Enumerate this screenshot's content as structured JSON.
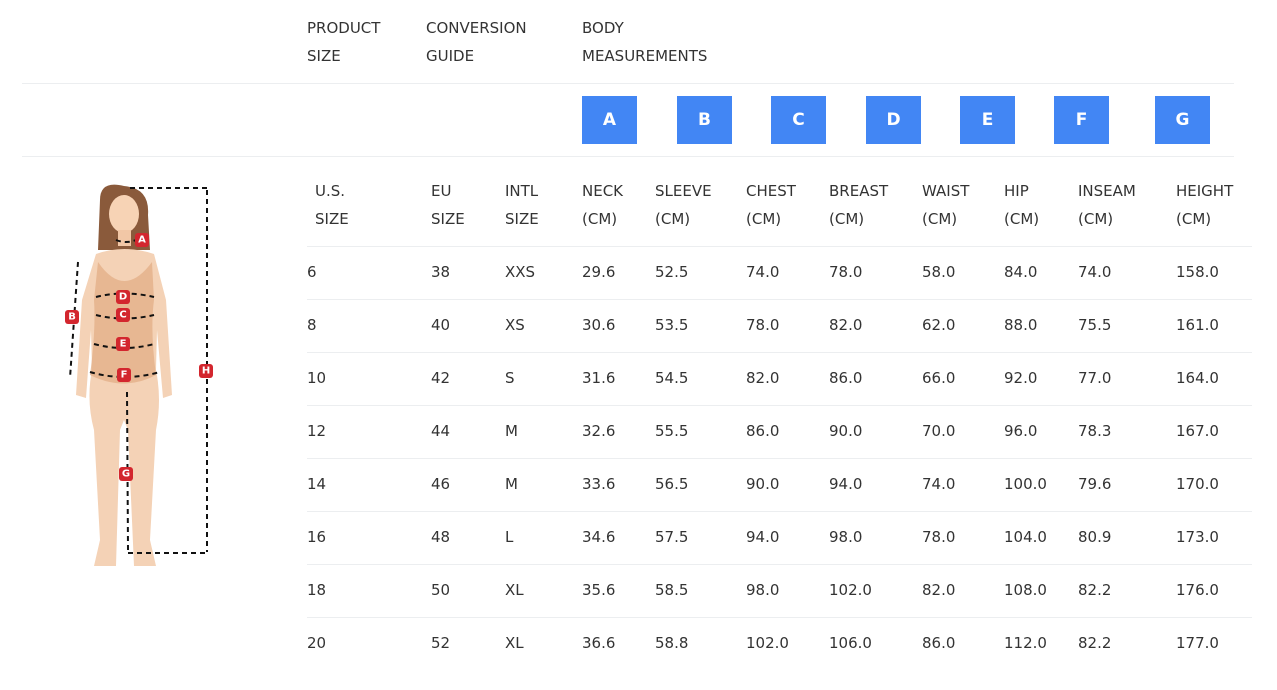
{
  "header": {
    "columns": [
      "PRODUCT SIZE",
      "CONVERSION GUIDE",
      "BODY MEASUREMENTS"
    ]
  },
  "badges": [
    "A",
    "B",
    "C",
    "D",
    "E",
    "F",
    "G"
  ],
  "table": {
    "columns": [
      "U.S. SIZE",
      "EU SIZE",
      "INTL SIZE",
      "NECK (CM)",
      "SLEEVE (CM)",
      "CHEST (CM)",
      "BREAST (CM)",
      "WAIST (CM)",
      "HIP (CM)",
      "INSEAM (CM)",
      "HEIGHT (CM)"
    ],
    "rows": [
      [
        "6",
        "38",
        "XXS",
        "29.6",
        "52.5",
        "74.0",
        "78.0",
        "58.0",
        "84.0",
        "74.0",
        "158.0"
      ],
      [
        "8",
        "40",
        "XS",
        "30.6",
        "53.5",
        "78.0",
        "82.0",
        "62.0",
        "88.0",
        "75.5",
        "161.0"
      ],
      [
        "10",
        "42",
        "S",
        "31.6",
        "54.5",
        "82.0",
        "86.0",
        "66.0",
        "92.0",
        "77.0",
        "164.0"
      ],
      [
        "12",
        "44",
        "M",
        "32.6",
        "55.5",
        "86.0",
        "90.0",
        "70.0",
        "96.0",
        "78.3",
        "167.0"
      ],
      [
        "14",
        "46",
        "M",
        "33.6",
        "56.5",
        "90.0",
        "94.0",
        "74.0",
        "100.0",
        "79.6",
        "170.0"
      ],
      [
        "16",
        "48",
        "L",
        "34.6",
        "57.5",
        "94.0",
        "98.0",
        "78.0",
        "104.0",
        "80.9",
        "173.0"
      ],
      [
        "18",
        "50",
        "XL",
        "35.6",
        "58.5",
        "98.0",
        "102.0",
        "82.0",
        "108.0",
        "82.2",
        "176.0"
      ],
      [
        "20",
        "52",
        "XL",
        "36.6",
        "58.8",
        "102.0",
        "106.0",
        "86.0",
        "112.0",
        "82.2",
        "177.0"
      ]
    ]
  },
  "figure": {
    "labels": [
      "A",
      "B",
      "C",
      "D",
      "E",
      "F",
      "G",
      "H"
    ]
  }
}
